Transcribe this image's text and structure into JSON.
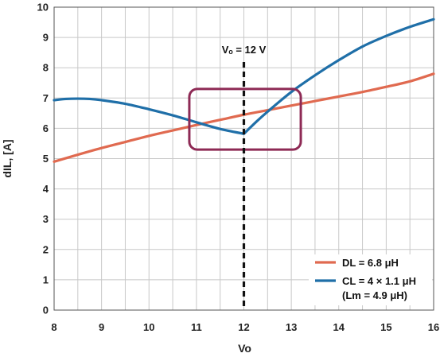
{
  "chart_data": {
    "type": "line",
    "title": "",
    "xlabel": "Vo",
    "ylabel": "dIL, [A]",
    "xlim": [
      8,
      16
    ],
    "ylim": [
      0,
      10
    ],
    "x_ticks": [
      8,
      9,
      10,
      11,
      12,
      13,
      14,
      15,
      16
    ],
    "y_ticks": [
      0,
      1,
      2,
      3,
      4,
      5,
      6,
      7,
      8,
      9,
      10
    ],
    "x_grid_step": 0.5,
    "y_grid_step": 1,
    "grid": true,
    "legend_position": "bottom-right",
    "series": [
      {
        "name": "DL = 6.8 μH",
        "color": "#e06a50",
        "x": [
          8,
          8.5,
          9,
          9.5,
          10,
          10.5,
          11,
          11.5,
          12,
          12.5,
          13,
          13.5,
          14,
          14.5,
          15,
          15.5,
          16
        ],
        "y": [
          4.9,
          5.13,
          5.35,
          5.55,
          5.75,
          5.93,
          6.11,
          6.28,
          6.45,
          6.6,
          6.75,
          6.9,
          7.05,
          7.2,
          7.37,
          7.55,
          7.8
        ]
      },
      {
        "name_lines": [
          "CL = 4 × 1.1 μH",
          "(Lm = 4.9 μH)"
        ],
        "color": "#1f6fa8",
        "x": [
          8,
          8.25,
          8.5,
          8.75,
          9,
          9.5,
          10,
          10.5,
          11,
          11.5,
          12,
          12.25,
          12.5,
          13,
          13.5,
          14,
          14.5,
          15,
          15.5,
          16
        ],
        "y": [
          6.93,
          6.97,
          6.98,
          6.97,
          6.93,
          6.81,
          6.63,
          6.43,
          6.2,
          5.98,
          5.82,
          6.2,
          6.55,
          7.2,
          7.75,
          8.25,
          8.7,
          9.05,
          9.35,
          9.6
        ]
      }
    ],
    "annotations": [
      {
        "type": "vline",
        "x": 12,
        "style": "dashed",
        "color": "#111111",
        "label": "Vₒ = 12 V"
      },
      {
        "type": "box",
        "x_range": [
          10.85,
          13.2
        ],
        "y_range": [
          5.3,
          7.3
        ],
        "color": "#8e2a55"
      }
    ]
  }
}
